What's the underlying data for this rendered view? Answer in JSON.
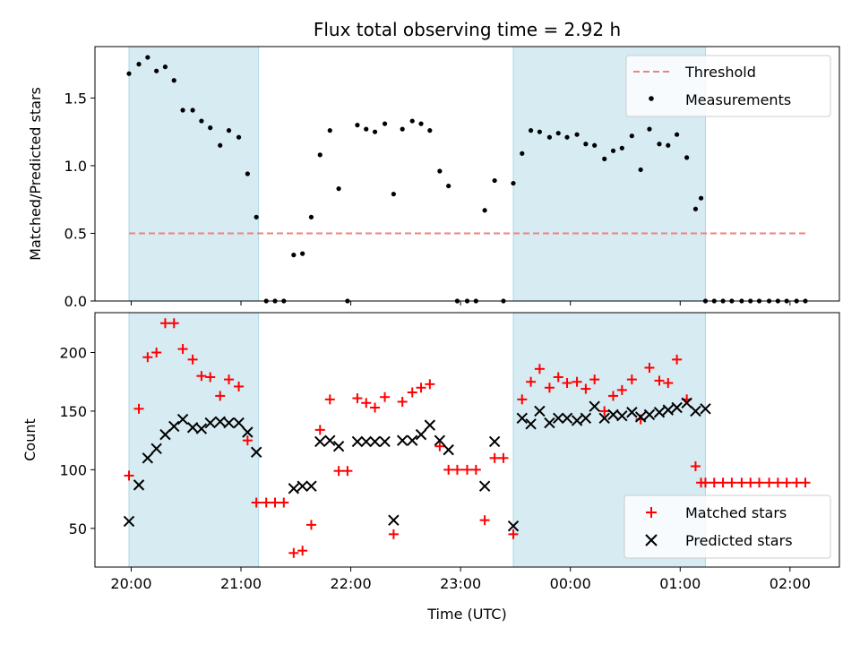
{
  "chart_data": [
    {
      "type": "scatter",
      "title": "Flux total observing time = 2.92 h",
      "ylabel": "Matched/Predicted stars",
      "xlabel": "",
      "xlim": [
        -0.33,
        6.45
      ],
      "ylim": [
        0,
        1.88
      ],
      "x_ticks": [
        0,
        1,
        2,
        3,
        4,
        5,
        6
      ],
      "x_tick_labels": [
        "",
        "",
        "",
        "",
        "",
        "",
        ""
      ],
      "y_ticks": [
        0.0,
        0.5,
        1.0,
        1.5
      ],
      "y_tick_labels": [
        "0.0",
        "0.5",
        "1.0",
        "1.5"
      ],
      "grid": false,
      "legend": "top-right",
      "shaded_spans": [
        [
          -0.02,
          1.16
        ],
        [
          3.48,
          5.23
        ]
      ],
      "threshold": {
        "name": "Threshold",
        "value": 0.5,
        "x_range": [
          -0.02,
          6.17
        ],
        "color": "#f08080"
      },
      "series": [
        {
          "name": "Measurements",
          "color": "#000000",
          "x": [
            -0.02,
            0.07,
            0.15,
            0.23,
            0.31,
            0.39,
            0.47,
            0.56,
            0.64,
            0.72,
            0.81,
            0.89,
            0.98,
            1.06,
            1.14,
            1.23,
            1.31,
            1.39,
            1.48,
            1.56,
            1.64,
            1.72,
            1.81,
            1.89,
            1.97,
            2.06,
            2.14,
            2.22,
            2.31,
            2.39,
            2.47,
            2.56,
            2.64,
            2.72,
            2.81,
            2.89,
            2.97,
            3.06,
            3.14,
            3.22,
            3.31,
            3.39,
            3.48,
            3.56,
            3.64,
            3.72,
            3.81,
            3.89,
            3.97,
            4.06,
            4.14,
            4.22,
            4.31,
            4.39,
            4.47,
            4.56,
            4.64,
            4.72,
            4.81,
            4.89,
            4.97,
            5.06,
            5.14,
            5.19,
            5.23,
            5.31,
            5.39,
            5.47,
            5.56,
            5.64,
            5.72,
            5.81,
            5.89,
            5.97,
            6.06,
            6.14
          ],
          "y": [
            1.68,
            1.75,
            1.8,
            1.7,
            1.73,
            1.63,
            1.41,
            1.41,
            1.33,
            1.28,
            1.15,
            1.26,
            1.21,
            0.94,
            0.62,
            0.0,
            0.0,
            0.0,
            0.34,
            0.35,
            0.62,
            1.08,
            1.26,
            0.83,
            0.0,
            1.3,
            1.27,
            1.25,
            1.31,
            0.79,
            1.27,
            1.33,
            1.31,
            1.26,
            0.96,
            0.85,
            0.0,
            0.0,
            0.0,
            0.67,
            0.89,
            0.0,
            0.87,
            1.09,
            1.26,
            1.25,
            1.21,
            1.24,
            1.21,
            1.23,
            1.16,
            1.15,
            1.05,
            1.11,
            1.13,
            1.22,
            0.97,
            1.27,
            1.16,
            1.15,
            1.23,
            1.06,
            0.68,
            0.76,
            0.0,
            0.0,
            0.0,
            0.0,
            0.0,
            0.0,
            0.0,
            0.0,
            0.0,
            0.0,
            0.0,
            0.0
          ]
        }
      ]
    },
    {
      "type": "scatter",
      "title": "",
      "xlabel": "Time (UTC)",
      "ylabel": "Count",
      "xlim": [
        -0.33,
        6.45
      ],
      "ylim": [
        17,
        234
      ],
      "x_ticks": [
        0,
        1,
        2,
        3,
        4,
        5,
        6
      ],
      "x_tick_labels": [
        "20:00",
        "21:00",
        "22:00",
        "23:00",
        "00:00",
        "01:00",
        "02:00"
      ],
      "y_ticks": [
        50,
        100,
        150,
        200
      ],
      "y_tick_labels": [
        "50",
        "100",
        "150",
        "200"
      ],
      "grid": false,
      "legend": "bottom-right",
      "shaded_spans": [
        [
          -0.02,
          1.16
        ],
        [
          3.48,
          5.23
        ]
      ],
      "series": [
        {
          "name": "Matched stars",
          "marker": "plus",
          "color": "#ff0000",
          "x": [
            -0.02,
            0.07,
            0.15,
            0.23,
            0.31,
            0.39,
            0.47,
            0.56,
            0.64,
            0.72,
            0.81,
            0.89,
            0.98,
            1.06,
            1.14,
            1.23,
            1.31,
            1.39,
            1.48,
            1.56,
            1.64,
            1.72,
            1.81,
            1.89,
            1.97,
            2.06,
            2.14,
            2.22,
            2.31,
            2.39,
            2.47,
            2.56,
            2.64,
            2.72,
            2.81,
            2.89,
            2.97,
            3.06,
            3.14,
            3.22,
            3.31,
            3.39,
            3.48,
            3.56,
            3.64,
            3.72,
            3.81,
            3.89,
            3.97,
            4.06,
            4.14,
            4.22,
            4.31,
            4.39,
            4.47,
            4.56,
            4.64,
            4.72,
            4.81,
            4.89,
            4.97,
            5.06,
            5.14,
            5.19,
            5.23,
            5.31,
            5.39,
            5.47,
            5.56,
            5.64,
            5.72,
            5.81,
            5.89,
            5.97,
            6.06,
            6.14
          ],
          "y": [
            95,
            152,
            196,
            200,
            225,
            225,
            203,
            194,
            180,
            179,
            163,
            177,
            171,
            125,
            72,
            72,
            72,
            72,
            29,
            31,
            53,
            134,
            160,
            99,
            99,
            161,
            157,
            153,
            162,
            45,
            158,
            166,
            170,
            173,
            120,
            100,
            100,
            100,
            100,
            57,
            110,
            110,
            45,
            160,
            175,
            186,
            170,
            179,
            174,
            175,
            169,
            177,
            150,
            163,
            168,
            177,
            143,
            187,
            176,
            174,
            194,
            160,
            103,
            89,
            89,
            89,
            89,
            89,
            89,
            89,
            89,
            89,
            89,
            89,
            89,
            89
          ]
        },
        {
          "name": "Predicted stars",
          "marker": "x",
          "color": "#000000",
          "x": [
            -0.02,
            0.07,
            0.15,
            0.23,
            0.31,
            0.39,
            0.47,
            0.56,
            0.64,
            0.72,
            0.81,
            0.89,
            0.98,
            1.06,
            1.14,
            1.56,
            1.64,
            1.72,
            1.81,
            1.89,
            2.06,
            2.14,
            2.22,
            2.31,
            2.39,
            2.47,
            2.56,
            2.64,
            2.72,
            2.81,
            2.89,
            3.22,
            3.31,
            3.48,
            3.56,
            3.64,
            3.72,
            3.81,
            3.89,
            3.97,
            4.06,
            4.14,
            4.22,
            4.31,
            4.39,
            4.47,
            4.56,
            4.64,
            4.72,
            4.81,
            4.89,
            4.97,
            5.06,
            5.14,
            5.23,
            1.48
          ],
          "y": [
            56,
            87,
            110,
            118,
            130,
            137,
            143,
            136,
            135,
            140,
            141,
            140,
            140,
            132,
            115,
            86,
            86,
            124,
            125,
            120,
            124,
            124,
            124,
            124,
            57,
            125,
            125,
            130,
            138,
            125,
            117,
            86,
            124,
            52,
            144,
            139,
            150,
            140,
            144,
            144,
            142,
            144,
            154,
            144,
            147,
            146,
            149,
            145,
            147,
            149,
            151,
            153,
            157,
            150,
            152,
            84
          ]
        }
      ]
    }
  ]
}
